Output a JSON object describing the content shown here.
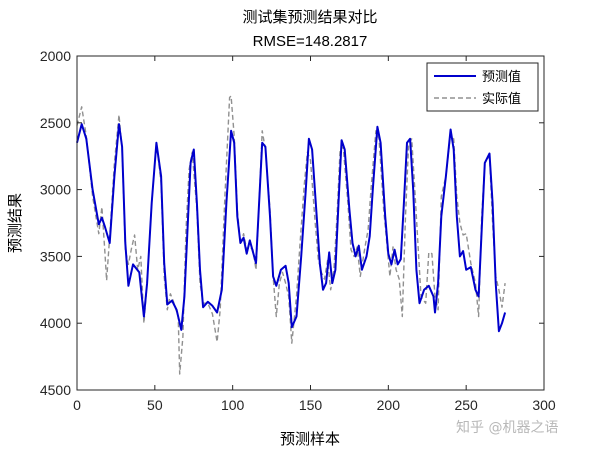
{
  "chart_data": {
    "type": "line",
    "title": "测试集预测结果对比",
    "subtitle": "RMSE=148.2817",
    "xlabel": "预测样本",
    "ylabel": "预测结果",
    "xlim": [
      0,
      300
    ],
    "ylim": [
      2000,
      4500
    ],
    "y_reversed": true,
    "xticks": [
      0,
      50,
      100,
      150,
      200,
      250,
      300
    ],
    "yticks": [
      2000,
      2500,
      3000,
      3500,
      4000,
      4500
    ],
    "legend_position": "top-right",
    "grid": false,
    "series": [
      {
        "name": "预测值",
        "color": "#0000cc",
        "style": "solid",
        "points": [
          [
            0,
            2650
          ],
          [
            3,
            2510
          ],
          [
            6,
            2620
          ],
          [
            10,
            3000
          ],
          [
            14,
            3260
          ],
          [
            16,
            3210
          ],
          [
            18,
            3280
          ],
          [
            21,
            3400
          ],
          [
            24,
            2900
          ],
          [
            27,
            2510
          ],
          [
            29,
            2680
          ],
          [
            31,
            3400
          ],
          [
            33,
            3720
          ],
          [
            36,
            3560
          ],
          [
            40,
            3620
          ],
          [
            43,
            3950
          ],
          [
            45,
            3700
          ],
          [
            48,
            3100
          ],
          [
            51,
            2650
          ],
          [
            54,
            2900
          ],
          [
            56,
            3550
          ],
          [
            58,
            3860
          ],
          [
            61,
            3830
          ],
          [
            64,
            3900
          ],
          [
            67,
            4050
          ],
          [
            69,
            3800
          ],
          [
            71,
            3300
          ],
          [
            73,
            2800
          ],
          [
            75,
            2700
          ],
          [
            77,
            3100
          ],
          [
            79,
            3600
          ],
          [
            81,
            3880
          ],
          [
            84,
            3840
          ],
          [
            87,
            3870
          ],
          [
            90,
            3920
          ],
          [
            93,
            3750
          ],
          [
            96,
            3100
          ],
          [
            99,
            2560
          ],
          [
            101,
            2650
          ],
          [
            103,
            3200
          ],
          [
            105,
            3400
          ],
          [
            107,
            3360
          ],
          [
            109,
            3480
          ],
          [
            111,
            3380
          ],
          [
            115,
            3550
          ],
          [
            117,
            3100
          ],
          [
            119,
            2650
          ],
          [
            121,
            2680
          ],
          [
            124,
            3200
          ],
          [
            126,
            3650
          ],
          [
            128,
            3720
          ],
          [
            131,
            3600
          ],
          [
            134,
            3570
          ],
          [
            136,
            3700
          ],
          [
            138,
            4030
          ],
          [
            141,
            3950
          ],
          [
            144,
            3500
          ],
          [
            147,
            3000
          ],
          [
            149,
            2620
          ],
          [
            151,
            2700
          ],
          [
            154,
            3200
          ],
          [
            156,
            3550
          ],
          [
            158,
            3750
          ],
          [
            160,
            3700
          ],
          [
            162,
            3470
          ],
          [
            164,
            3700
          ],
          [
            166,
            3600
          ],
          [
            168,
            3100
          ],
          [
            170,
            2630
          ],
          [
            172,
            2700
          ],
          [
            175,
            3150
          ],
          [
            177,
            3400
          ],
          [
            179,
            3500
          ],
          [
            181,
            3420
          ],
          [
            183,
            3600
          ],
          [
            186,
            3500
          ],
          [
            188,
            3350
          ],
          [
            190,
            3000
          ],
          [
            193,
            2530
          ],
          [
            195,
            2650
          ],
          [
            198,
            3200
          ],
          [
            200,
            3480
          ],
          [
            202,
            3560
          ],
          [
            204,
            3450
          ],
          [
            206,
            3560
          ],
          [
            208,
            3520
          ],
          [
            210,
            3100
          ],
          [
            212,
            2650
          ],
          [
            214,
            2620
          ],
          [
            216,
            3000
          ],
          [
            218,
            3600
          ],
          [
            220,
            3850
          ],
          [
            223,
            3750
          ],
          [
            226,
            3720
          ],
          [
            229,
            3800
          ],
          [
            230,
            3920
          ],
          [
            232,
            3700
          ],
          [
            234,
            3200
          ],
          [
            237,
            2900
          ],
          [
            240,
            2550
          ],
          [
            242,
            2700
          ],
          [
            244,
            3200
          ],
          [
            246,
            3500
          ],
          [
            248,
            3460
          ],
          [
            250,
            3600
          ],
          [
            253,
            3580
          ],
          [
            256,
            3750
          ],
          [
            258,
            3800
          ],
          [
            260,
            3300
          ],
          [
            262,
            2800
          ],
          [
            265,
            2730
          ],
          [
            267,
            3100
          ],
          [
            269,
            3700
          ],
          [
            271,
            4060
          ],
          [
            273,
            4000
          ],
          [
            275,
            3920
          ]
        ]
      },
      {
        "name": "实际值",
        "color": "#909090",
        "style": "dashed",
        "points": [
          [
            0,
            2520
          ],
          [
            3,
            2380
          ],
          [
            6,
            2600
          ],
          [
            10,
            3050
          ],
          [
            14,
            3330
          ],
          [
            16,
            3130
          ],
          [
            18,
            3480
          ],
          [
            19,
            3680
          ],
          [
            21,
            3350
          ],
          [
            24,
            2800
          ],
          [
            27,
            2440
          ],
          [
            29,
            2700
          ],
          [
            31,
            3450
          ],
          [
            33,
            3560
          ],
          [
            35,
            3440
          ],
          [
            37,
            3340
          ],
          [
            39,
            3600
          ],
          [
            41,
            3500
          ],
          [
            43,
            4000
          ],
          [
            45,
            3700
          ],
          [
            48,
            3100
          ],
          [
            51,
            2650
          ],
          [
            54,
            2950
          ],
          [
            56,
            3650
          ],
          [
            58,
            3900
          ],
          [
            60,
            3780
          ],
          [
            62,
            3840
          ],
          [
            65,
            3950
          ],
          [
            66,
            4380
          ],
          [
            68,
            4100
          ],
          [
            70,
            3300
          ],
          [
            72,
            2850
          ],
          [
            74,
            2720
          ],
          [
            77,
            3150
          ],
          [
            79,
            3700
          ],
          [
            81,
            3850
          ],
          [
            84,
            3850
          ],
          [
            87,
            3930
          ],
          [
            90,
            4140
          ],
          [
            92,
            3900
          ],
          [
            95,
            3050
          ],
          [
            98,
            2310
          ],
          [
            99,
            2300
          ],
          [
            101,
            2600
          ],
          [
            103,
            3150
          ],
          [
            105,
            3400
          ],
          [
            107,
            3330
          ],
          [
            109,
            3450
          ],
          [
            111,
            3430
          ],
          [
            113,
            3450
          ],
          [
            115,
            3600
          ],
          [
            117,
            3100
          ],
          [
            119,
            2560
          ],
          [
            121,
            2700
          ],
          [
            124,
            3150
          ],
          [
            126,
            3650
          ],
          [
            128,
            3950
          ],
          [
            130,
            3700
          ],
          [
            132,
            3620
          ],
          [
            134,
            3700
          ],
          [
            136,
            3800
          ],
          [
            138,
            4150
          ],
          [
            141,
            3800
          ],
          [
            143,
            3450
          ],
          [
            146,
            2960
          ],
          [
            148,
            2720
          ],
          [
            150,
            2780
          ],
          [
            153,
            3250
          ],
          [
            155,
            3520
          ],
          [
            157,
            3620
          ],
          [
            159,
            3670
          ],
          [
            161,
            3530
          ],
          [
            163,
            3750
          ],
          [
            165,
            3600
          ],
          [
            167,
            3200
          ],
          [
            169,
            2700
          ],
          [
            171,
            2680
          ],
          [
            174,
            3100
          ],
          [
            176,
            3450
          ],
          [
            178,
            3500
          ],
          [
            180,
            3430
          ],
          [
            182,
            3650
          ],
          [
            185,
            3430
          ],
          [
            187,
            3300
          ],
          [
            189,
            2980
          ],
          [
            192,
            2560
          ],
          [
            194,
            2620
          ],
          [
            197,
            3150
          ],
          [
            199,
            3400
          ],
          [
            201,
            3650
          ],
          [
            203,
            3430
          ],
          [
            205,
            3600
          ],
          [
            207,
            3670
          ],
          [
            209,
            3950
          ],
          [
            211,
            3200
          ],
          [
            213,
            2660
          ],
          [
            215,
            2620
          ],
          [
            217,
            3000
          ],
          [
            219,
            3400
          ],
          [
            221,
            3800
          ],
          [
            224,
            3850
          ],
          [
            226,
            3470
          ],
          [
            228,
            3480
          ],
          [
            230,
            3800
          ],
          [
            232,
            3900
          ],
          [
            234,
            3050
          ],
          [
            237,
            2900
          ],
          [
            240,
            2580
          ],
          [
            242,
            2620
          ],
          [
            244,
            3050
          ],
          [
            246,
            3250
          ],
          [
            248,
            3340
          ],
          [
            250,
            3330
          ],
          [
            253,
            3550
          ],
          [
            256,
            3700
          ],
          [
            258,
            3950
          ],
          [
            260,
            3200
          ],
          [
            262,
            2800
          ],
          [
            265,
            2750
          ],
          [
            267,
            3250
          ],
          [
            269,
            3650
          ],
          [
            271,
            3750
          ],
          [
            273,
            3880
          ],
          [
            275,
            3700
          ]
        ]
      }
    ]
  },
  "watermark": "知乎 @机器之语"
}
